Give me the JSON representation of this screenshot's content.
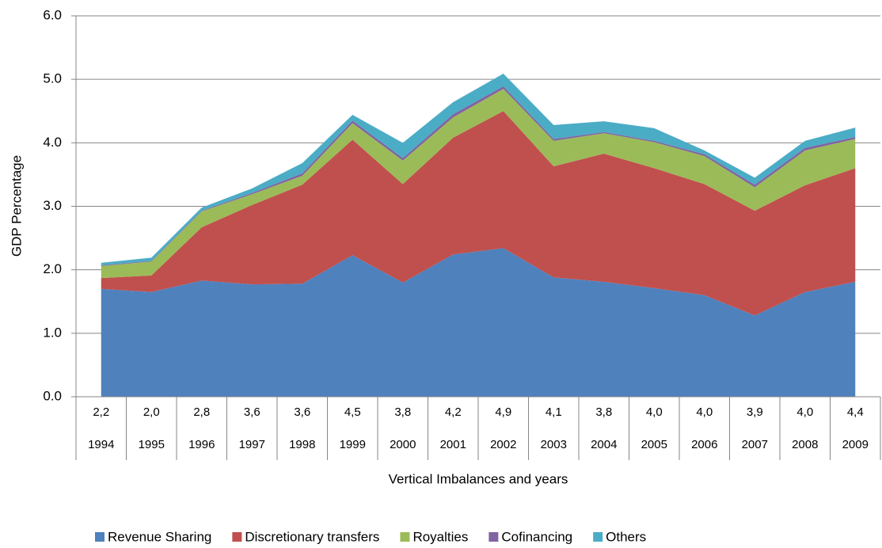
{
  "chart_data": {
    "type": "stacked-area",
    "y_label": "GDP Percentage",
    "x_label": "Vertical Imbalances and years",
    "categories": [
      "1994",
      "1995",
      "1996",
      "1997",
      "1998",
      "1999",
      "2000",
      "2001",
      "2002",
      "2003",
      "2004",
      "2005",
      "2006",
      "2007",
      "2008",
      "2009"
    ],
    "imbalances": [
      "2,2",
      "2,0",
      "2,8",
      "3,6",
      "3,6",
      "4,5",
      "3,8",
      "4,2",
      "4,9",
      "4,1",
      "3,8",
      "4,0",
      "4,0",
      "3,9",
      "4,0",
      "4,4"
    ],
    "series": [
      {
        "name": "Revenue Sharing",
        "color": "#4f81bd",
        "values": [
          1.7,
          1.65,
          1.83,
          1.77,
          1.78,
          2.23,
          1.8,
          2.24,
          2.34,
          1.88,
          1.81,
          1.71,
          1.6,
          1.28,
          1.65,
          1.81
        ]
      },
      {
        "name": "Discretionary transfers",
        "color": "#c0504d",
        "values": [
          0.17,
          0.26,
          0.84,
          1.25,
          1.56,
          1.82,
          1.55,
          1.84,
          2.16,
          1.75,
          2.02,
          1.89,
          1.75,
          1.65,
          1.68,
          1.79
        ]
      },
      {
        "name": "Royalties",
        "color": "#9bbb59",
        "values": [
          0.19,
          0.22,
          0.25,
          0.17,
          0.14,
          0.26,
          0.37,
          0.32,
          0.35,
          0.4,
          0.32,
          0.41,
          0.44,
          0.37,
          0.55,
          0.46
        ]
      },
      {
        "name": "Cofinancing",
        "color": "#8064a2",
        "values": [
          0.01,
          0.01,
          0.01,
          0.02,
          0.04,
          0.04,
          0.04,
          0.05,
          0.04,
          0.03,
          0.02,
          0.02,
          0.03,
          0.04,
          0.04,
          0.03
        ]
      },
      {
        "name": "Others",
        "color": "#4bacc6",
        "values": [
          0.04,
          0.05,
          0.05,
          0.07,
          0.16,
          0.09,
          0.24,
          0.19,
          0.2,
          0.22,
          0.17,
          0.2,
          0.06,
          0.11,
          0.11,
          0.15
        ]
      }
    ],
    "ylim": [
      0,
      6
    ],
    "yticks": [
      {
        "value": 0,
        "label": "0.0"
      },
      {
        "value": 1,
        "label": "1.0"
      },
      {
        "value": 2,
        "label": "2.0"
      },
      {
        "value": 3,
        "label": "3.0"
      },
      {
        "value": 4,
        "label": "4.0"
      },
      {
        "value": 5,
        "label": "5.0"
      },
      {
        "value": 6,
        "label": "6.0"
      }
    ],
    "grid": true,
    "legend": "bottom"
  }
}
